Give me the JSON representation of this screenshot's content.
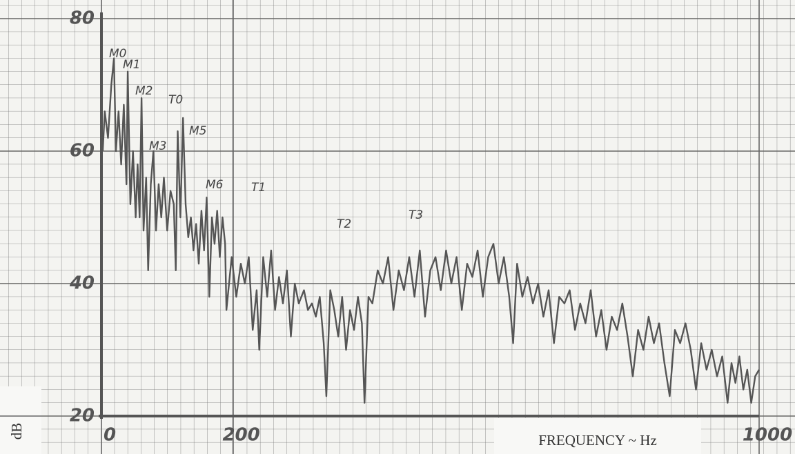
{
  "chart_data": {
    "type": "line",
    "x_label": "FREQUENCY ~ Hz",
    "y_label": "dB",
    "annotations": [
      "M0",
      "M1",
      "M2",
      "T0",
      "M3",
      "M5",
      "M6",
      "T1",
      "T2",
      "T3"
    ],
    "xlim": [
      0,
      1000
    ],
    "ylim": [
      20,
      80
    ],
    "xticks": [
      0,
      200,
      1000
    ],
    "yticks": [
      20,
      40,
      60,
      80
    ],
    "color": "#555555",
    "grid": true,
    "x": [
      2,
      5,
      10,
      15,
      19,
      22,
      26,
      30,
      34,
      38,
      40,
      44,
      48,
      52,
      55,
      58,
      61,
      64,
      68,
      71,
      75,
      79,
      83,
      87,
      91,
      95,
      100,
      105,
      110,
      113,
      116,
      120,
      124,
      128,
      132,
      136,
      140,
      144,
      148,
      152,
      156,
      160,
      164,
      168,
      172,
      176,
      180,
      184,
      188,
      190,
      194,
      198,
      205,
      212,
      218,
      224,
      230,
      236,
      240,
      246,
      252,
      258,
      264,
      270,
      276,
      282,
      288,
      294,
      300,
      308,
      314,
      320,
      326,
      332,
      338,
      342,
      348,
      354,
      360,
      366,
      372,
      378,
      384,
      390,
      396,
      400,
      406,
      412,
      420,
      428,
      436,
      444,
      452,
      460,
      468,
      476,
      484,
      492,
      500,
      508,
      516,
      524,
      532,
      540,
      548,
      556,
      564,
      572,
      580,
      588,
      596,
      604,
      612,
      620,
      626,
      632,
      640,
      648,
      656,
      664,
      672,
      680,
      688,
      696,
      704,
      712,
      720,
      728,
      736,
      744,
      752,
      760,
      768,
      776,
      784,
      792,
      800,
      808,
      816,
      824,
      832,
      840,
      848,
      856,
      864,
      872,
      880,
      888,
      896,
      904,
      912,
      920,
      928,
      936,
      944,
      952,
      958,
      964,
      970,
      976,
      982,
      988,
      994,
      1000
    ],
    "values": [
      60,
      66,
      62,
      70,
      74,
      60,
      66,
      58,
      67,
      55,
      72,
      52,
      60,
      50,
      58,
      50,
      68,
      48,
      56,
      42,
      55,
      60,
      48,
      55,
      50,
      56,
      48,
      54,
      52,
      42,
      63,
      50,
      65,
      52,
      47,
      50,
      45,
      49,
      43,
      51,
      45,
      53,
      38,
      50,
      46,
      51,
      44,
      50,
      46,
      36,
      40,
      44,
      38,
      43,
      40,
      44,
      33,
      39,
      30,
      44,
      38,
      45,
      36,
      41,
      37,
      42,
      32,
      40,
      37,
      39,
      36,
      37,
      35,
      38,
      31,
      23,
      39,
      36,
      32,
      38,
      30,
      36,
      33,
      38,
      34,
      22,
      38,
      37,
      42,
      40,
      44,
      36,
      42,
      39,
      44,
      38,
      45,
      35,
      42,
      44,
      39,
      45,
      40,
      44,
      36,
      43,
      41,
      45,
      38,
      44,
      46,
      40,
      44,
      38,
      31,
      43,
      38,
      41,
      37,
      40,
      35,
      39,
      31,
      38,
      37,
      39,
      33,
      37,
      34,
      39,
      32,
      36,
      30,
      35,
      33,
      37,
      32,
      26,
      33,
      30,
      35,
      31,
      34,
      28,
      23,
      33,
      31,
      34,
      30,
      24,
      31,
      27,
      30,
      26,
      29,
      22,
      28,
      25,
      29,
      24,
      27,
      22,
      26,
      27
    ]
  }
}
